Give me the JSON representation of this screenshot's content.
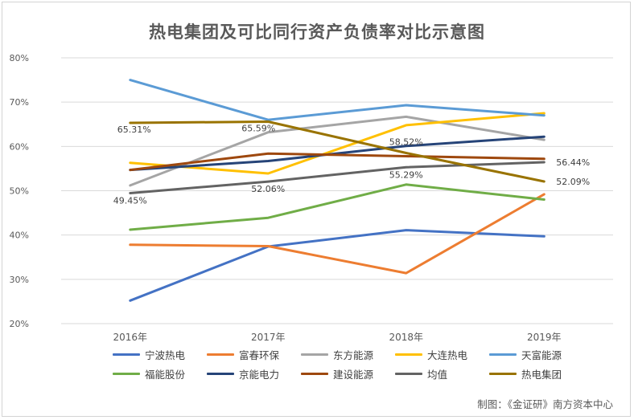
{
  "chart_data": {
    "type": "line",
    "title": "热电集团及可比同行资产负债率对比示意图",
    "categories": [
      "2016年",
      "2017年",
      "2018年",
      "2019年"
    ],
    "ylim": [
      20,
      80
    ],
    "yticks": [
      "20%",
      "30%",
      "40%",
      "50%",
      "60%",
      "70%",
      "80%"
    ],
    "ytick_values": [
      20,
      30,
      40,
      50,
      60,
      70,
      80
    ],
    "grid": true,
    "legend_position": "bottom",
    "series": [
      {
        "name": "宁波热电",
        "color": "#4472c4",
        "values": [
          25.2,
          37.4,
          41.1,
          39.7
        ]
      },
      {
        "name": "富春环保",
        "color": "#ed7d31",
        "values": [
          37.8,
          37.5,
          31.4,
          49.2
        ]
      },
      {
        "name": "东方能源",
        "color": "#a5a5a5",
        "values": [
          51.2,
          63.2,
          66.7,
          61.5
        ]
      },
      {
        "name": "大连热电",
        "color": "#ffc000",
        "values": [
          56.3,
          53.9,
          64.8,
          67.5
        ]
      },
      {
        "name": "天富能源",
        "color": "#5b9bd5",
        "values": [
          75.0,
          66.0,
          69.3,
          67.0
        ]
      },
      {
        "name": "福能股份",
        "color": "#70ad47",
        "values": [
          41.2,
          43.9,
          51.4,
          48.0
        ]
      },
      {
        "name": "京能电力",
        "color": "#264478",
        "values": [
          54.7,
          56.7,
          60.1,
          62.2
        ]
      },
      {
        "name": "建设能源",
        "color": "#9e480e",
        "values": [
          54.7,
          58.4,
          57.8,
          57.2
        ]
      },
      {
        "name": "均值",
        "color": "#636363",
        "values": [
          49.45,
          52.06,
          55.29,
          56.44
        ],
        "labels": [
          "49.45%",
          "52.06%",
          "55.29%",
          "56.44%"
        ]
      },
      {
        "name": "热电集团",
        "color": "#997300",
        "values": [
          65.31,
          65.59,
          58.52,
          52.09
        ],
        "labels": [
          "65.31%",
          "65.59%",
          "58.52%",
          "52.09%"
        ]
      }
    ]
  },
  "credit": "制图：《金证研》南方资本中心"
}
